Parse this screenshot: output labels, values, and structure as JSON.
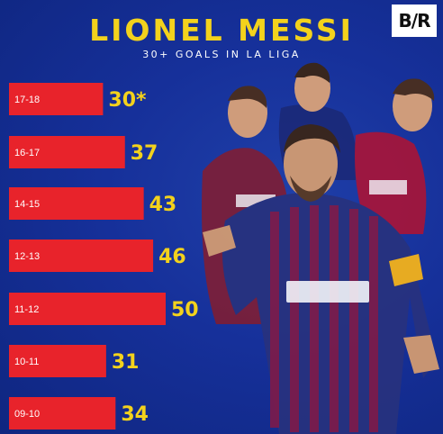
{
  "header": {
    "title": "LIONEL MESSI",
    "subtitle": "30+ GOALS IN LA LIGA",
    "logo_text": "B/R"
  },
  "chart_data": {
    "type": "bar",
    "orientation": "horizontal",
    "title": "LIONEL MESSI",
    "subtitle": "30+ GOALS IN LA LIGA",
    "categories": [
      "17-18",
      "16-17",
      "14-15",
      "12-13",
      "11-12",
      "10-11",
      "09-10"
    ],
    "values": [
      30,
      37,
      43,
      46,
      50,
      31,
      34
    ],
    "value_labels": [
      "30*",
      "37",
      "43",
      "46",
      "50",
      "31",
      "34"
    ],
    "xlabel": "",
    "ylabel": "",
    "xlim": [
      0,
      50
    ],
    "grid": false,
    "bar_color": "#e8232b",
    "value_color": "#f3d21c"
  },
  "colors": {
    "background": "#16309a",
    "accent": "#f3d21c",
    "bar": "#e8232b"
  },
  "image": {
    "subject": "Lionel Messi photo collage in Barcelona kit"
  }
}
